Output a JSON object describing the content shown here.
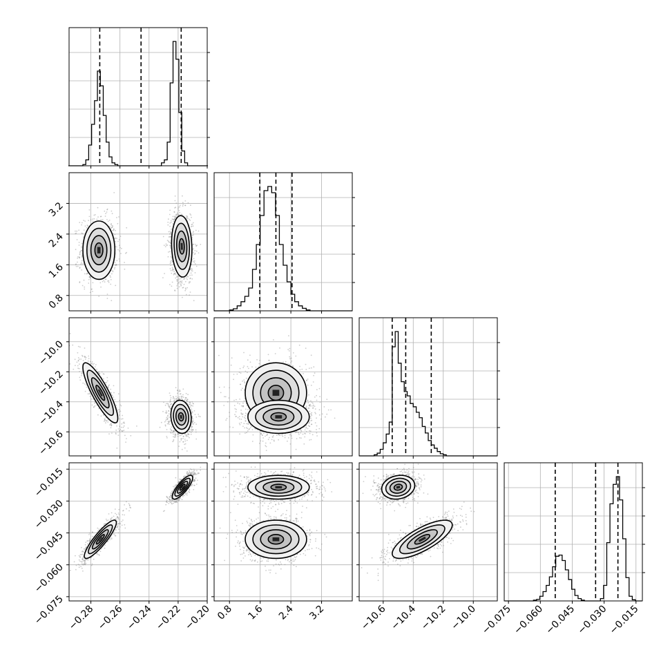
{
  "chart_data": {
    "type": "corner",
    "title": "",
    "parameters": [
      {
        "label": "",
        "range": [
          -0.295,
          -0.2
        ],
        "ticks": [
          -0.28,
          -0.26,
          -0.24,
          -0.22,
          -0.2
        ],
        "tick_labels": [
          "−0.28",
          "−0.26",
          "−0.24",
          "−0.22",
          "−0.20"
        ],
        "quantiles": [
          -0.2739,
          -0.2455,
          -0.2179
        ]
      },
      {
        "label": "",
        "range": [
          0.4,
          4.0
        ],
        "ticks": [
          0.8,
          1.6,
          2.4,
          3.2
        ],
        "tick_labels": [
          "0.8",
          "1.6",
          "2.4",
          "3.2"
        ],
        "quantiles": [
          1.59,
          2.01,
          2.43
        ]
      },
      {
        "label": "",
        "range": [
          -10.76,
          -9.84
        ],
        "ticks": [
          -10.6,
          -10.4,
          -10.2,
          -10.0
        ],
        "tick_labels": [
          "−10.6",
          "−10.4",
          "−10.2",
          "−10.0"
        ],
        "quantiles": [
          -10.54,
          -10.45,
          -10.28
        ]
      },
      {
        "label": "",
        "range": [
          -0.077,
          -0.012
        ],
        "ticks": [
          -0.075,
          -0.06,
          -0.045,
          -0.03,
          -0.015
        ],
        "tick_labels": [
          "−0.075",
          "−0.060",
          "−0.045",
          "−0.030",
          "−0.015"
        ],
        "quantiles": [
          -0.053,
          -0.034,
          -0.0235
        ]
      }
    ],
    "histograms": [
      {
        "bins": [
          -0.2945,
          -0.2925,
          -0.2905,
          -0.2885,
          -0.2865,
          -0.2845,
          -0.2825,
          -0.2805,
          -0.2785,
          -0.2765,
          -0.2745,
          -0.2725,
          -0.2705,
          -0.2685,
          -0.2665,
          -0.2645,
          -0.2625,
          -0.2605,
          -0.2585,
          -0.2565,
          -0.2545,
          -0.2525,
          -0.2505,
          -0.2485,
          -0.2465,
          -0.2445,
          -0.2425,
          -0.2405,
          -0.2385,
          -0.2365,
          -0.2345,
          -0.2325,
          -0.2305,
          -0.2285,
          -0.2265,
          -0.2245,
          -0.2225,
          -0.2205,
          -0.2185,
          -0.2165,
          -0.2145,
          -0.2125,
          -0.2105,
          -0.2085,
          -0.2065,
          -0.2045,
          -0.2025,
          -0.2005
        ],
        "counts": [
          0,
          0,
          0,
          0,
          0,
          2,
          10,
          35,
          70,
          110,
          160,
          135,
          85,
          40,
          15,
          5,
          2,
          0,
          0,
          0,
          0,
          0,
          0,
          0,
          0,
          0,
          0,
          0,
          0,
          0,
          0,
          0,
          5,
          10,
          40,
          140,
          210,
          180,
          90,
          25,
          5,
          0,
          0,
          0,
          0,
          0,
          0,
          0
        ]
      },
      {
        "bins": [
          0.45,
          0.55,
          0.65,
          0.75,
          0.85,
          0.95,
          1.05,
          1.15,
          1.25,
          1.35,
          1.45,
          1.55,
          1.65,
          1.75,
          1.85,
          1.95,
          2.05,
          2.15,
          2.25,
          2.35,
          2.45,
          2.55,
          2.65,
          2.75,
          2.85,
          2.95,
          3.05,
          3.15,
          3.25,
          3.35,
          3.45,
          3.55,
          3.65,
          3.75,
          3.85,
          3.95
        ],
        "counts": [
          0,
          0,
          0,
          0,
          2,
          5,
          12,
          22,
          35,
          55,
          100,
          160,
          230,
          290,
          300,
          285,
          230,
          160,
          110,
          70,
          40,
          22,
          12,
          6,
          2,
          0,
          0,
          0,
          0,
          0,
          0,
          0,
          0,
          0,
          0,
          0
        ]
      },
      {
        "bins": [
          -10.75,
          -10.73,
          -10.71,
          -10.69,
          -10.67,
          -10.65,
          -10.63,
          -10.61,
          -10.59,
          -10.57,
          -10.55,
          -10.53,
          -10.51,
          -10.49,
          -10.47,
          -10.45,
          -10.43,
          -10.41,
          -10.39,
          -10.37,
          -10.35,
          -10.33,
          -10.31,
          -10.29,
          -10.27,
          -10.25,
          -10.23,
          -10.21,
          -10.19,
          -10.17,
          -10.15,
          -10.13,
          -10.11,
          -10.09,
          -10.07,
          -10.05,
          -10.03,
          -10.01,
          -9.99,
          -9.97,
          -9.95,
          -9.93,
          -9.91,
          -9.89,
          -9.87,
          -9.85
        ],
        "counts": [
          0,
          0,
          0,
          0,
          0,
          2,
          5,
          12,
          24,
          40,
          62,
          200,
          228,
          170,
          136,
          118,
          110,
          96,
          90,
          80,
          70,
          54,
          42,
          28,
          20,
          14,
          8,
          4,
          2,
          0,
          0,
          0,
          0,
          0,
          0,
          0,
          0,
          0,
          0,
          0,
          0,
          0,
          0,
          0,
          0,
          0
        ]
      },
      {
        "bins": [
          -0.076,
          -0.0745,
          -0.073,
          -0.0715,
          -0.07,
          -0.0685,
          -0.067,
          -0.0655,
          -0.064,
          -0.0625,
          -0.061,
          -0.0595,
          -0.058,
          -0.0565,
          -0.055,
          -0.0535,
          -0.052,
          -0.0505,
          -0.049,
          -0.0475,
          -0.046,
          -0.0445,
          -0.043,
          -0.0415,
          -0.04,
          -0.0385,
          -0.037,
          -0.0355,
          -0.034,
          -0.0325,
          -0.031,
          -0.0295,
          -0.028,
          -0.0265,
          -0.025,
          -0.0235,
          -0.022,
          -0.0205,
          -0.019,
          -0.0175,
          -0.016,
          -0.0145,
          -0.013
        ],
        "counts": [
          0,
          0,
          0,
          0,
          0,
          0,
          0,
          0,
          0,
          2,
          4,
          12,
          24,
          40,
          62,
          88,
          115,
          118,
          104,
          80,
          55,
          30,
          14,
          6,
          2,
          0,
          0,
          0,
          0,
          0,
          6,
          40,
          150,
          250,
          300,
          320,
          260,
          160,
          60,
          12,
          3,
          0,
          0
        ]
      }
    ],
    "pairs": [
      {
        "x": 0,
        "y": 1,
        "blobs": [
          {
            "cx": -0.2745,
            "cy": 1.98,
            "sx": 0.0055,
            "sy": 0.38,
            "rho": 0.0,
            "w": 1.0
          },
          {
            "cx": -0.2175,
            "cy": 2.08,
            "sx": 0.0035,
            "sy": 0.4,
            "rho": -0.1,
            "w": 1.3
          }
        ]
      },
      {
        "x": 0,
        "y": 2,
        "blobs": [
          {
            "cx": -0.2735,
            "cy": -10.34,
            "sx": 0.006,
            "sy": 0.1,
            "rho": -0.85,
            "w": 1.0
          },
          {
            "cx": -0.218,
            "cy": -10.5,
            "sx": 0.0035,
            "sy": 0.055,
            "rho": -0.1,
            "w": 1.3
          }
        ]
      },
      {
        "x": 1,
        "y": 2,
        "blobs": [
          {
            "cx": 2.01,
            "cy": -10.34,
            "sx": 0.4,
            "sy": 0.1,
            "rho": 0.0,
            "w": 1.0
          },
          {
            "cx": 2.08,
            "cy": -10.5,
            "sx": 0.4,
            "sy": 0.055,
            "rho": 0.0,
            "w": 1.3
          }
        ]
      },
      {
        "x": 0,
        "y": 3,
        "blobs": [
          {
            "cx": -0.2735,
            "cy": -0.048,
            "sx": 0.0055,
            "sy": 0.0045,
            "rho": 0.88,
            "w": 1.0
          },
          {
            "cx": -0.217,
            "cy": -0.0235,
            "sx": 0.0035,
            "sy": 0.0028,
            "rho": 0.8,
            "w": 1.3
          }
        ]
      },
      {
        "x": 1,
        "y": 3,
        "blobs": [
          {
            "cx": 2.01,
            "cy": -0.048,
            "sx": 0.4,
            "sy": 0.0045,
            "rho": 0.0,
            "w": 1.0
          },
          {
            "cx": 2.08,
            "cy": -0.0235,
            "sx": 0.4,
            "sy": 0.0028,
            "rho": 0.0,
            "w": 1.3
          }
        ]
      },
      {
        "x": 2,
        "y": 3,
        "blobs": [
          {
            "cx": -10.34,
            "cy": -0.048,
            "sx": 0.1,
            "sy": 0.0045,
            "rho": 0.75,
            "w": 1.0
          },
          {
            "cx": -10.5,
            "cy": -0.0235,
            "sx": 0.055,
            "sy": 0.0028,
            "rho": 0.15,
            "w": 1.3
          }
        ]
      }
    ],
    "contour_levels_sigma": [
      0.5,
      1.0,
      1.5,
      2.0
    ],
    "grid": true,
    "colors": {
      "line": "#000000",
      "points": "#8c8c8c",
      "grid": "#b0b0b0",
      "frame": "#000000"
    }
  }
}
